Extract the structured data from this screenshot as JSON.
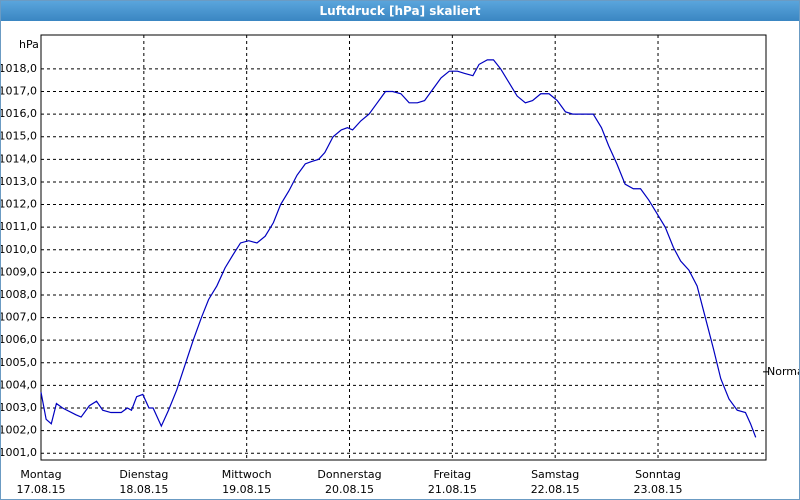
{
  "window_title": "Luftdruck [hPa] skaliert",
  "chart_data": {
    "type": "line",
    "y_unit": "hPa",
    "annotation": {
      "text": "Normal",
      "value": 1004.6
    },
    "xlim": [
      0,
      7.05
    ],
    "ylim": [
      1000.7,
      1019.5
    ],
    "grid": true,
    "xticks": [
      {
        "value": 0,
        "label": "Montag",
        "sublabel": "17.08.15"
      },
      {
        "value": 1,
        "label": "Dienstag",
        "sublabel": "18.08.15"
      },
      {
        "value": 2,
        "label": "Mittwoch",
        "sublabel": "19.08.15"
      },
      {
        "value": 3,
        "label": "Donnerstag",
        "sublabel": "20.08.15"
      },
      {
        "value": 4,
        "label": "Freitag",
        "sublabel": "21.08.15"
      },
      {
        "value": 5,
        "label": "Samstag",
        "sublabel": "22.08.15"
      },
      {
        "value": 6,
        "label": "Sonntag",
        "sublabel": "23.08.15"
      }
    ],
    "yticks": [
      {
        "value": 1001,
        "label": "1001,0"
      },
      {
        "value": 1002,
        "label": "1002,0"
      },
      {
        "value": 1003,
        "label": "1003,0"
      },
      {
        "value": 1004,
        "label": "1004,0"
      },
      {
        "value": 1005,
        "label": "1005,0"
      },
      {
        "value": 1006,
        "label": "1006,0"
      },
      {
        "value": 1007,
        "label": "1007,0"
      },
      {
        "value": 1008,
        "label": "1008,0"
      },
      {
        "value": 1009,
        "label": "1009,0"
      },
      {
        "value": 1010,
        "label": "1010,0"
      },
      {
        "value": 1011,
        "label": "1011,0"
      },
      {
        "value": 1012,
        "label": "1012,0"
      },
      {
        "value": 1013,
        "label": "1013,0"
      },
      {
        "value": 1014,
        "label": "1014,0"
      },
      {
        "value": 1015,
        "label": "1015,0"
      },
      {
        "value": 1016,
        "label": "1016,0"
      },
      {
        "value": 1017,
        "label": "1017,0"
      },
      {
        "value": 1018,
        "label": "1018,0"
      }
    ],
    "x": [
      0,
      0.05,
      0.1,
      0.15,
      0.21,
      0.34,
      0.39,
      0.47,
      0.54,
      0.6,
      0.68,
      0.78,
      0.84,
      0.88,
      0.93,
      0.99,
      1.05,
      1.09,
      1.17,
      1.24,
      1.32,
      1.4,
      1.48,
      1.56,
      1.63,
      1.71,
      1.79,
      1.87,
      1.94,
      2.02,
      2.1,
      2.18,
      2.26,
      2.33,
      2.41,
      2.49,
      2.57,
      2.63,
      2.7,
      2.76,
      2.84,
      2.92,
      2.98,
      3.03,
      3.11,
      3.19,
      3.27,
      3.35,
      3.42,
      3.5,
      3.58,
      3.66,
      3.73,
      3.81,
      3.89,
      3.97,
      4.05,
      4.12,
      4.2,
      4.26,
      4.34,
      4.4,
      4.47,
      4.55,
      4.63,
      4.71,
      4.78,
      4.86,
      4.94,
      5.02,
      5.1,
      5.17,
      5.25,
      5.37,
      5.45,
      5.52,
      5.6,
      5.68,
      5.76,
      5.83,
      5.91,
      5.99,
      6.07,
      6.15,
      6.22,
      6.3,
      6.38,
      6.46,
      6.54,
      6.61,
      6.69,
      6.77,
      6.85,
      6.9,
      6.95
    ],
    "series": [
      {
        "color": "#0000c0",
        "values": [
          1003.7,
          1002.5,
          1002.3,
          1003.2,
          1003.0,
          1002.7,
          1002.6,
          1003.1,
          1003.3,
          1002.9,
          1002.8,
          1002.8,
          1003.0,
          1002.9,
          1003.5,
          1003.6,
          1003.0,
          1003.0,
          1002.2,
          1002.9,
          1003.8,
          1004.9,
          1006.0,
          1007.0,
          1007.8,
          1008.4,
          1009.2,
          1009.8,
          1010.3,
          1010.4,
          1010.3,
          1010.6,
          1011.2,
          1012.0,
          1012.6,
          1013.3,
          1013.8,
          1013.9,
          1014.0,
          1014.3,
          1015.0,
          1015.3,
          1015.4,
          1015.3,
          1015.7,
          1016.0,
          1016.5,
          1017.0,
          1017.0,
          1016.9,
          1016.5,
          1016.5,
          1016.6,
          1017.1,
          1017.6,
          1017.9,
          1017.9,
          1017.8,
          1017.7,
          1018.2,
          1018.4,
          1018.4,
          1018.0,
          1017.4,
          1016.8,
          1016.5,
          1016.6,
          1016.9,
          1016.9,
          1016.6,
          1016.1,
          1016.0,
          1016.0,
          1016.0,
          1015.4,
          1014.6,
          1013.8,
          1012.9,
          1012.7,
          1012.7,
          1012.2,
          1011.6,
          1011.0,
          1010.1,
          1009.5,
          1009.1,
          1008.4,
          1007.0,
          1005.6,
          1004.3,
          1003.4,
          1002.9,
          1002.8,
          1002.3,
          1001.7
        ]
      }
    ]
  }
}
